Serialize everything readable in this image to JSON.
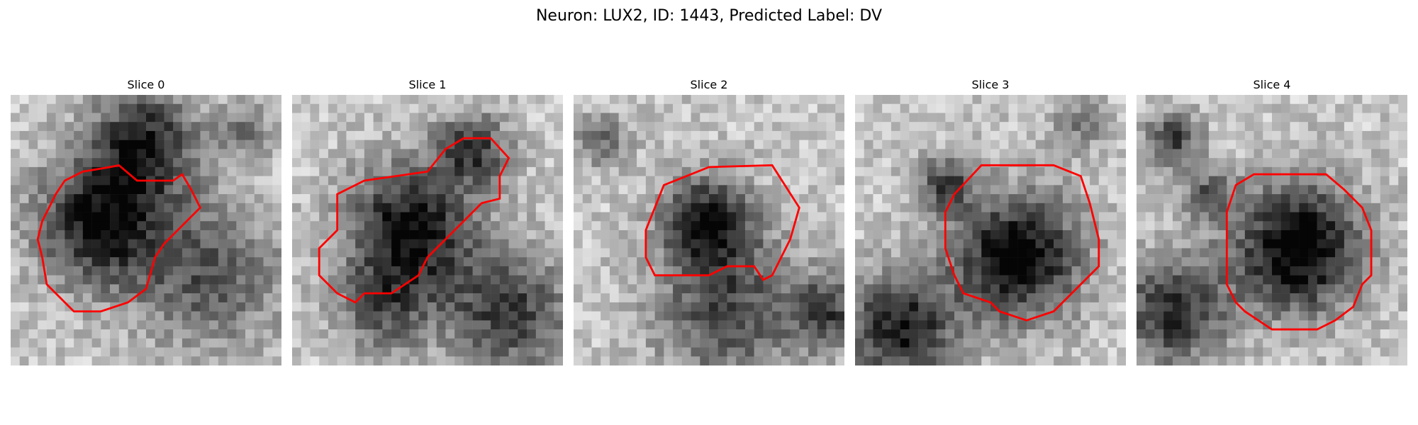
{
  "figure": {
    "title": "Neuron: LUX2, ID: 1443, Predicted Label: DV"
  },
  "slices": [
    {
      "title": "Slice 0"
    },
    {
      "title": "Slice 1"
    },
    {
      "title": "Slice 2"
    },
    {
      "title": "Slice 3"
    },
    {
      "title": "Slice 4"
    }
  ],
  "colors": {
    "contour": "#ff0000",
    "background": "#ffffff"
  }
}
